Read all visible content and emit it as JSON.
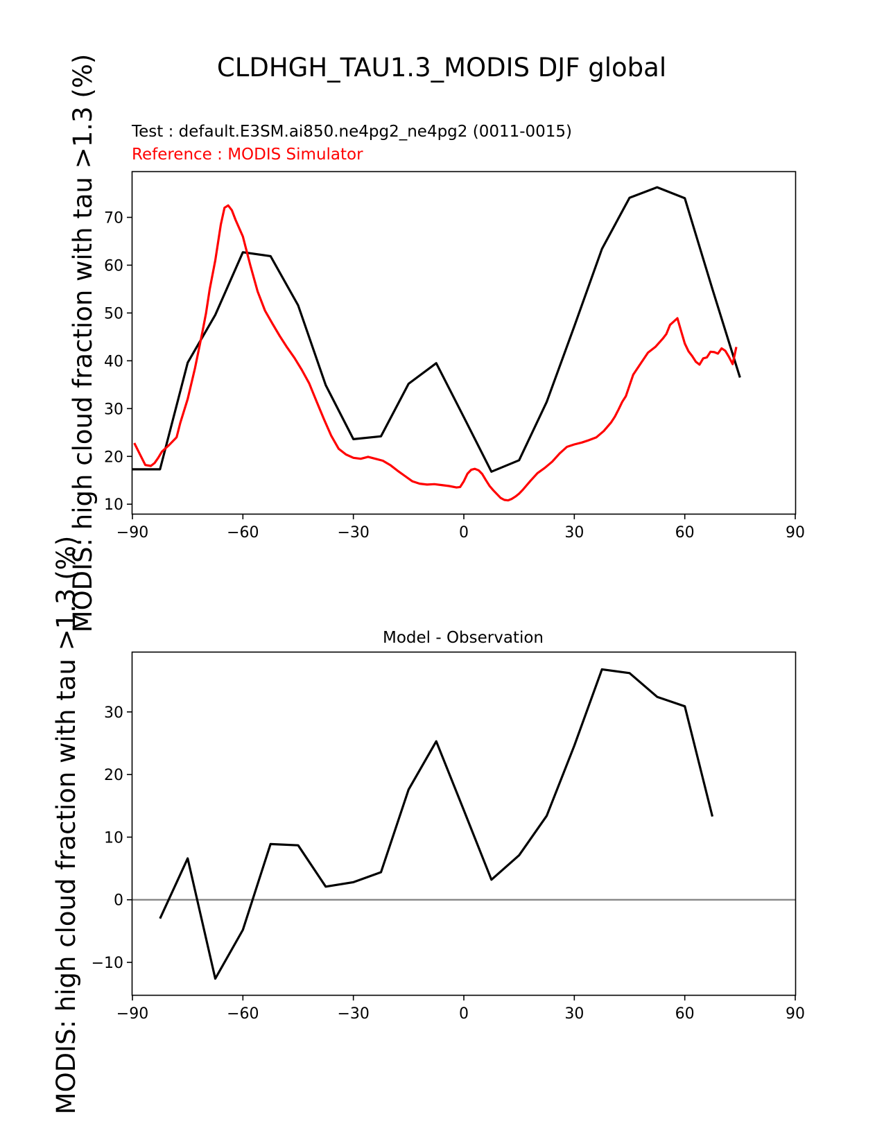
{
  "figure": {
    "suptitle": "CLDHGH_TAU1.3_MODIS DJF global"
  },
  "chart_data": [
    {
      "type": "line",
      "id": "top",
      "title": "",
      "test_label": "Test : default.E3SM.ai850.ne4pg2_ne4pg2 (0011-0015)",
      "reference_label": "Reference : MODIS Simulator",
      "ylabel": "MODIS: high cloud fraction with tau >1.3 (%)",
      "xlabel": "",
      "xlim": [
        -90,
        90
      ],
      "ylim": [
        8,
        79.5
      ],
      "xticks": [
        -90,
        -60,
        -30,
        0,
        30,
        60,
        90
      ],
      "xtick_labels": [
        "−90",
        "−60",
        "−30",
        "0",
        "30",
        "60",
        "90"
      ],
      "yticks": [
        10,
        20,
        30,
        40,
        50,
        60,
        70
      ],
      "ytick_labels": [
        "10",
        "20",
        "30",
        "40",
        "50",
        "60",
        "70"
      ],
      "colors": {
        "test": "#000000",
        "reference": "#ff0000"
      },
      "series": [
        {
          "name": "test",
          "color": "#000000",
          "x": [
            -90,
            -82.5,
            -75,
            -67.5,
            -60,
            -52.5,
            -45,
            -37.5,
            -30,
            -22.5,
            -15,
            -7.5,
            0,
            7.5,
            15,
            22.5,
            30,
            37.5,
            45,
            52.5,
            60,
            67.5,
            75
          ],
          "y": [
            17.3,
            17.3,
            39.6,
            49.6,
            62.7,
            61.9,
            51.6,
            34.9,
            23.6,
            24.2,
            35.2,
            39.5,
            28.2,
            16.8,
            19.2,
            31.4,
            47.2,
            63.4,
            74.1,
            76.3,
            74.0,
            55.0,
            36.5
          ]
        },
        {
          "name": "reference",
          "color": "#ff0000",
          "x": [
            -89.5,
            -88,
            -86.5,
            -85,
            -84,
            -83,
            -82,
            -80,
            -78,
            -77,
            -75,
            -73,
            -71,
            -70,
            -69,
            -67.5,
            -66,
            -65,
            -64,
            -63,
            -62,
            -60,
            -58,
            -56,
            -54,
            -52,
            -50,
            -48,
            -46,
            -44,
            -42,
            -40,
            -38,
            -36,
            -34,
            -32,
            -30,
            -28,
            -26,
            -24,
            -22,
            -20,
            -18,
            -16,
            -14,
            -12,
            -10,
            -8,
            -6,
            -4,
            -2,
            -1,
            0,
            1,
            2,
            3,
            4,
            5,
            6,
            7,
            8,
            9,
            10,
            11,
            12,
            13,
            14,
            15,
            16,
            18,
            20,
            22,
            24,
            26,
            28,
            30,
            32,
            34,
            36,
            38,
            40,
            41,
            42,
            43,
            44,
            46,
            48,
            50,
            52,
            54,
            55,
            56,
            57,
            58,
            59,
            60,
            61,
            62,
            63,
            64,
            65,
            66,
            67,
            68,
            69,
            70,
            71,
            72,
            73,
            74
          ],
          "y": [
            22.8,
            20.5,
            18.2,
            18.0,
            18.6,
            19.7,
            21.0,
            22.4,
            24.0,
            27.0,
            32.0,
            38.5,
            46.0,
            50.0,
            55.0,
            61.0,
            68.5,
            72.0,
            72.5,
            71.5,
            69.5,
            66.0,
            60.0,
            54.5,
            50.5,
            47.8,
            45.2,
            42.8,
            40.6,
            38.1,
            35.3,
            31.5,
            27.8,
            24.3,
            21.6,
            20.4,
            19.7,
            19.5,
            19.9,
            19.5,
            19.1,
            18.2,
            17.0,
            15.9,
            14.8,
            14.3,
            14.1,
            14.2,
            14.0,
            13.8,
            13.5,
            13.6,
            14.8,
            16.4,
            17.2,
            17.4,
            17.1,
            16.3,
            15.0,
            13.8,
            12.9,
            12.1,
            11.3,
            10.9,
            10.8,
            11.1,
            11.6,
            12.2,
            13.0,
            14.8,
            16.5,
            17.6,
            18.9,
            20.6,
            22.0,
            22.5,
            22.9,
            23.4,
            24.0,
            25.3,
            27.1,
            28.3,
            29.8,
            31.4,
            32.6,
            37.1,
            39.4,
            41.7,
            42.9,
            44.6,
            45.6,
            47.5,
            48.2,
            48.9,
            46.2,
            43.6,
            42.0,
            41.0,
            39.8,
            39.2,
            40.5,
            40.7,
            41.9,
            41.8,
            41.5,
            42.6,
            42.1,
            40.8,
            39.3,
            42.9
          ]
        }
      ]
    },
    {
      "type": "line",
      "id": "bottom",
      "title": "Model - Observation",
      "ylabel": "MODIS: high cloud fraction with tau >1.3 (%)",
      "xlabel": "",
      "xlim": [
        -90,
        90
      ],
      "ylim": [
        -15.2,
        39.5
      ],
      "xticks": [
        -90,
        -60,
        -30,
        0,
        30,
        60,
        90
      ],
      "xtick_labels": [
        "−90",
        "−60",
        "−30",
        "0",
        "30",
        "60",
        "90"
      ],
      "yticks": [
        -10,
        0,
        10,
        20,
        30
      ],
      "ytick_labels": [
        "−10",
        "0",
        "10",
        "20",
        "30"
      ],
      "zero_line_color": "#808080",
      "series": [
        {
          "name": "difference",
          "color": "#000000",
          "x": [
            -82.5,
            -75,
            -67.5,
            -60,
            -52.5,
            -45,
            -37.5,
            -30,
            -22.5,
            -15,
            -7.5,
            0,
            7.5,
            15,
            22.5,
            30,
            37.5,
            45,
            52.5,
            60,
            67.5
          ],
          "y": [
            -3.0,
            6.6,
            -12.6,
            -4.8,
            8.9,
            8.7,
            2.1,
            2.8,
            4.4,
            17.6,
            25.3,
            14.3,
            3.2,
            7.1,
            13.4,
            24.6,
            36.8,
            36.2,
            32.4,
            30.9,
            13.3
          ]
        }
      ]
    }
  ]
}
